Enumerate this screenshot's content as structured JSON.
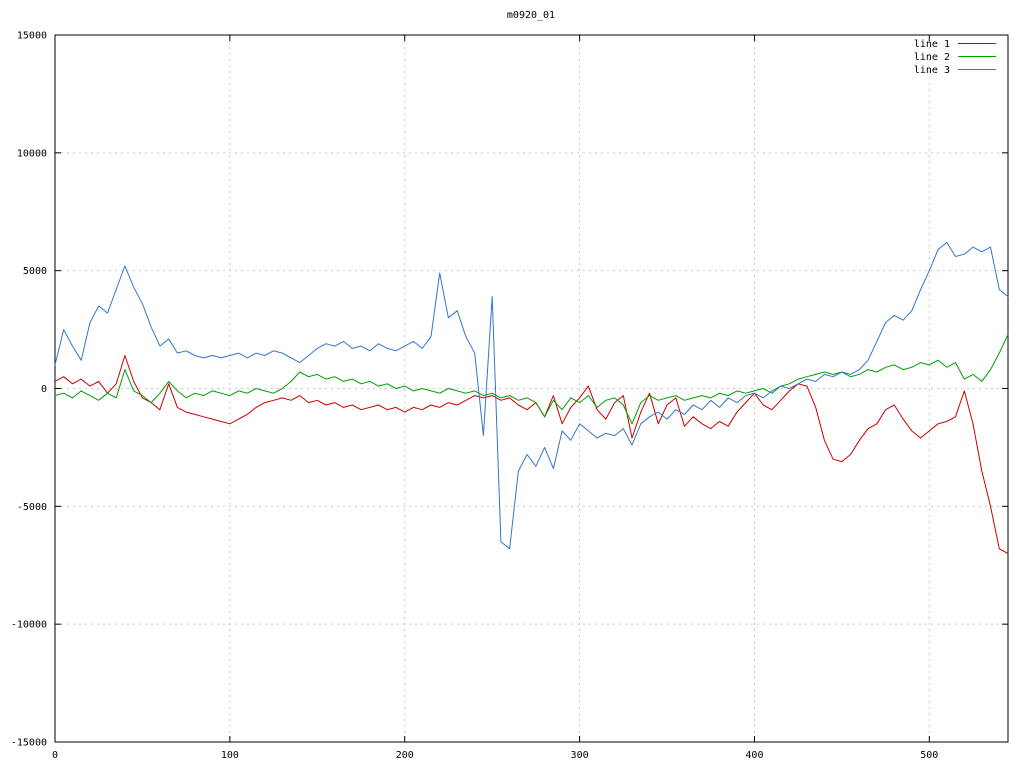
{
  "title": "m0920_01",
  "chart_data": {
    "type": "line",
    "title": "m0920_01",
    "xlabel": "",
    "ylabel": "",
    "xlim": [
      0,
      545
    ],
    "ylim": [
      -15000,
      15000
    ],
    "xticks": [
      0,
      100,
      200,
      300,
      400,
      500
    ],
    "yticks": [
      -15000,
      -10000,
      -5000,
      0,
      5000,
      10000,
      15000
    ],
    "grid": true,
    "legend_position": "top-right",
    "x": [
      0,
      5,
      10,
      15,
      20,
      25,
      30,
      35,
      40,
      45,
      50,
      55,
      60,
      65,
      70,
      75,
      80,
      85,
      90,
      95,
      100,
      105,
      110,
      115,
      120,
      125,
      130,
      135,
      140,
      145,
      150,
      155,
      160,
      165,
      170,
      175,
      180,
      185,
      190,
      195,
      200,
      205,
      210,
      215,
      220,
      225,
      230,
      235,
      240,
      245,
      250,
      255,
      260,
      265,
      270,
      275,
      280,
      285,
      290,
      295,
      300,
      305,
      310,
      315,
      320,
      325,
      330,
      335,
      340,
      345,
      350,
      355,
      360,
      365,
      370,
      375,
      380,
      385,
      390,
      395,
      400,
      405,
      410,
      415,
      420,
      425,
      430,
      435,
      440,
      445,
      450,
      455,
      460,
      465,
      470,
      475,
      480,
      485,
      490,
      495,
      500,
      505,
      510,
      515,
      520,
      525,
      530,
      535,
      540,
      545
    ],
    "series": [
      {
        "name": "line 1",
        "color": "#cc0000",
        "values": [
          300,
          500,
          200,
          400,
          100,
          300,
          -200,
          200,
          1400,
          300,
          -400,
          -600,
          -900,
          200,
          -800,
          -1000,
          -1100,
          -1200,
          -1300,
          -1400,
          -1500,
          -1300,
          -1100,
          -800,
          -600,
          -500,
          -400,
          -500,
          -300,
          -600,
          -500,
          -700,
          -600,
          -800,
          -700,
          -900,
          -800,
          -700,
          -900,
          -800,
          -1000,
          -800,
          -900,
          -700,
          -800,
          -600,
          -700,
          -500,
          -300,
          -400,
          -300,
          -500,
          -400,
          -700,
          -900,
          -600,
          -1200,
          -300,
          -1500,
          -800,
          -400,
          100,
          -900,
          -1300,
          -600,
          -300,
          -2100,
          -1000,
          -200,
          -1500,
          -700,
          -400,
          -1600,
          -1200,
          -1500,
          -1700,
          -1400,
          -1600,
          -1000,
          -600,
          -200,
          -700,
          -900,
          -500,
          -100,
          200,
          100,
          -800,
          -2200,
          -3000,
          -3100,
          -2800,
          -2200,
          -1700,
          -1500,
          -900,
          -700,
          -1300,
          -1800,
          -2100,
          -1800,
          -1500,
          -1400,
          -1200,
          -100,
          -1500,
          -3500,
          -5000,
          -6800,
          -7000
        ]
      },
      {
        "name": "line 2",
        "color": "#00a000",
        "values": [
          -300,
          -200,
          -400,
          -100,
          -300,
          -500,
          -200,
          -400,
          800,
          -100,
          -300,
          -600,
          -200,
          300,
          -100,
          -400,
          -200,
          -300,
          -100,
          -200,
          -300,
          -100,
          -200,
          0,
          -100,
          -200,
          0,
          300,
          700,
          500,
          600,
          400,
          500,
          300,
          400,
          200,
          300,
          100,
          200,
          0,
          100,
          -100,
          0,
          -100,
          -200,
          0,
          -100,
          -200,
          -100,
          -300,
          -200,
          -400,
          -300,
          -500,
          -400,
          -600,
          -1200,
          -500,
          -900,
          -400,
          -600,
          -300,
          -800,
          -500,
          -400,
          -700,
          -1500,
          -600,
          -300,
          -500,
          -400,
          -300,
          -500,
          -400,
          -300,
          -400,
          -200,
          -300,
          -100,
          -200,
          -100,
          0,
          -200,
          100,
          200,
          400,
          500,
          600,
          700,
          600,
          700,
          500,
          600,
          800,
          700,
          900,
          1000,
          800,
          900,
          1100,
          1000,
          1200,
          900,
          1100,
          400,
          600,
          300,
          800,
          1500,
          2300
        ]
      },
      {
        "name": "line 3",
        "color": "#3377cc",
        "values": [
          1000,
          2500,
          1800,
          1200,
          2800,
          3500,
          3200,
          4200,
          5200,
          4300,
          3600,
          2600,
          1800,
          2100,
          1500,
          1600,
          1400,
          1300,
          1400,
          1300,
          1400,
          1500,
          1300,
          1500,
          1400,
          1600,
          1500,
          1300,
          1100,
          1400,
          1700,
          1900,
          1800,
          2000,
          1700,
          1800,
          1600,
          1900,
          1700,
          1600,
          1800,
          2000,
          1700,
          2200,
          4900,
          3000,
          3300,
          2200,
          1500,
          -2000,
          3900,
          -6500,
          -6800,
          -3500,
          -2800,
          -3300,
          -2500,
          -3400,
          -1800,
          -2200,
          -1500,
          -1800,
          -2100,
          -1900,
          -2000,
          -1700,
          -2400,
          -1500,
          -1200,
          -1000,
          -1300,
          -900,
          -1100,
          -700,
          -900,
          -500,
          -800,
          -400,
          -600,
          -300,
          -200,
          -400,
          -100,
          100,
          0,
          200,
          400,
          300,
          600,
          500,
          700,
          600,
          800,
          1200,
          2000,
          2800,
          3100,
          2900,
          3300,
          4200,
          5000,
          5900,
          6200,
          5600,
          5700,
          6000,
          5800,
          6000,
          4200,
          3900
        ]
      }
    ]
  }
}
